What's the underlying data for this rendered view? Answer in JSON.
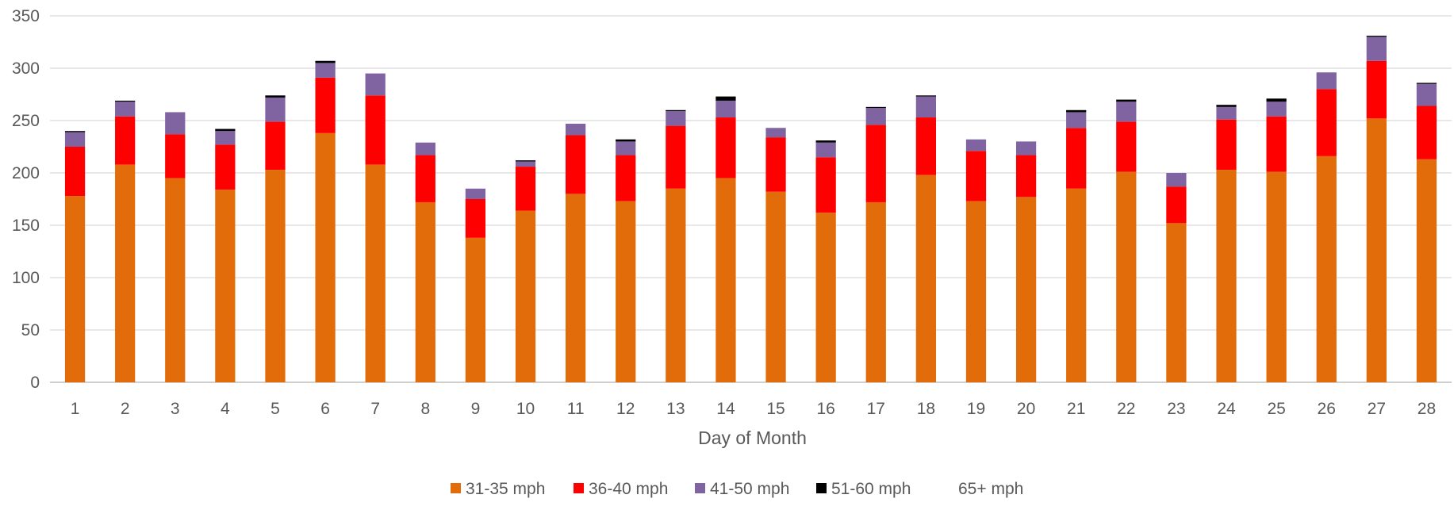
{
  "chart_data": {
    "type": "bar",
    "stacked": true,
    "title": "",
    "xlabel": "Day of Month",
    "ylabel": "",
    "ylim": [
      0,
      350
    ],
    "yticks": [
      0,
      50,
      100,
      150,
      200,
      250,
      300,
      350
    ],
    "grid": true,
    "legend_position": "bottom",
    "categories": [
      "1",
      "2",
      "3",
      "4",
      "5",
      "6",
      "7",
      "8",
      "9",
      "10",
      "11",
      "12",
      "13",
      "14",
      "15",
      "16",
      "17",
      "18",
      "19",
      "20",
      "21",
      "22",
      "23",
      "24",
      "25",
      "26",
      "27",
      "28"
    ],
    "series": [
      {
        "name": "31-35 mph",
        "color": "#E36C0A",
        "values": [
          178,
          208,
          195,
          184,
          203,
          238,
          208,
          172,
          138,
          164,
          180,
          173,
          185,
          195,
          182,
          162,
          172,
          198,
          173,
          177,
          185,
          201,
          152,
          203,
          201,
          216,
          252,
          213
        ]
      },
      {
        "name": "36-40 mph",
        "color": "#FF0000",
        "values": [
          47,
          46,
          42,
          43,
          46,
          53,
          66,
          45,
          37,
          42,
          56,
          44,
          60,
          58,
          52,
          53,
          74,
          55,
          48,
          40,
          58,
          48,
          35,
          48,
          53,
          64,
          55,
          51
        ]
      },
      {
        "name": "41-50 mph",
        "color": "#8064A2",
        "values": [
          14,
          14,
          21,
          13,
          23,
          14,
          21,
          12,
          10,
          5,
          11,
          13,
          14,
          16,
          9,
          14,
          16,
          20,
          11,
          13,
          15,
          19,
          13,
          12,
          14,
          16,
          23,
          21
        ]
      },
      {
        "name": "51-60 mph",
        "color": "#000000",
        "values": [
          1,
          1,
          0,
          2,
          2,
          2,
          0,
          0,
          0,
          1,
          0,
          2,
          1,
          4,
          0,
          2,
          1,
          1,
          0,
          0,
          2,
          2,
          0,
          2,
          3,
          0,
          1,
          1
        ]
      },
      {
        "name": "65+ mph",
        "color": "#4BACC6",
        "values": [
          0,
          0,
          0,
          0,
          0,
          0,
          0,
          0,
          0,
          0,
          0,
          0,
          0,
          0,
          0,
          0,
          0,
          0,
          0,
          0,
          0,
          0,
          0,
          0,
          0,
          0,
          0,
          0
        ]
      }
    ]
  }
}
